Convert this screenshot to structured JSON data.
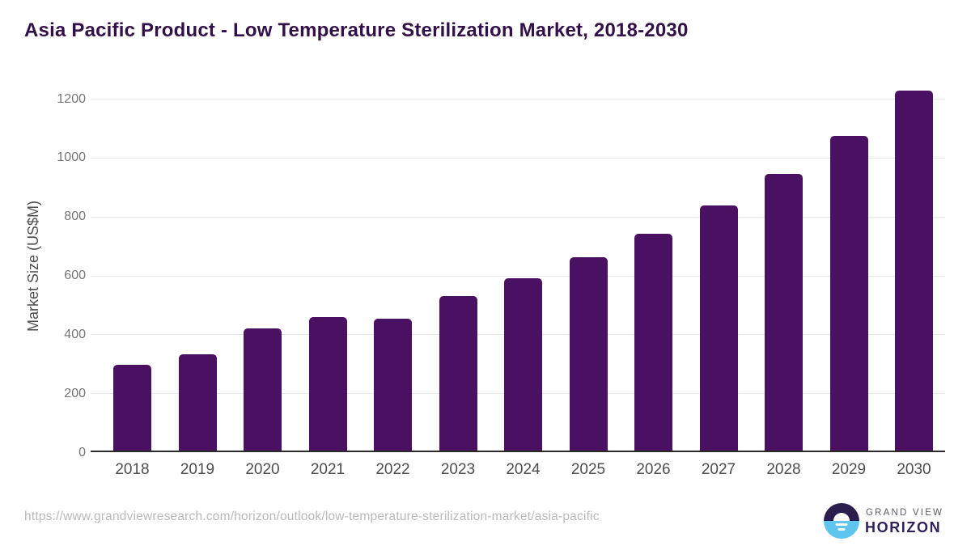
{
  "page": {
    "title": "Asia Pacific Product - Low Temperature Sterilization Market, 2018-2030"
  },
  "chart_data": {
    "type": "bar",
    "title": "Asia Pacific Product - Low Temperature Sterilization Market, 2018-2030",
    "categories": [
      "2018",
      "2019",
      "2020",
      "2021",
      "2022",
      "2023",
      "2024",
      "2025",
      "2026",
      "2027",
      "2028",
      "2029",
      "2030"
    ],
    "values": [
      297,
      332,
      421,
      459,
      453,
      529,
      590,
      661,
      741,
      837,
      945,
      1074,
      1228
    ],
    "xlabel": "",
    "ylabel": "Market Size (US$M)",
    "ylim": [
      0,
      1270
    ],
    "yticks": [
      0,
      200,
      400,
      600,
      800,
      1000,
      1200
    ],
    "grid": true,
    "legend": "none",
    "bar_color": "#4A1162"
  },
  "footer": {
    "source_url": "https://www.grandviewresearch.com/horizon/outlook/low-temperature-sterilization-market/asia-pacific",
    "logo": {
      "brand_top": "GRAND VIEW",
      "brand_bottom": "HORIZON"
    }
  },
  "colors": {
    "title": "#331048",
    "bar": "#4A1162",
    "grid": "#E9E9E9",
    "axis": "#2B2B2B",
    "tick": "#757575",
    "xtick": "#4D4D4D",
    "ylabel": "#4D4D4D",
    "url": "#B9B9B9",
    "logo_dark": "#2B1E4F",
    "logo_blue": "#5EC5EF",
    "brand_top": "#5A5A64",
    "brand_bottom": "#32205A"
  }
}
